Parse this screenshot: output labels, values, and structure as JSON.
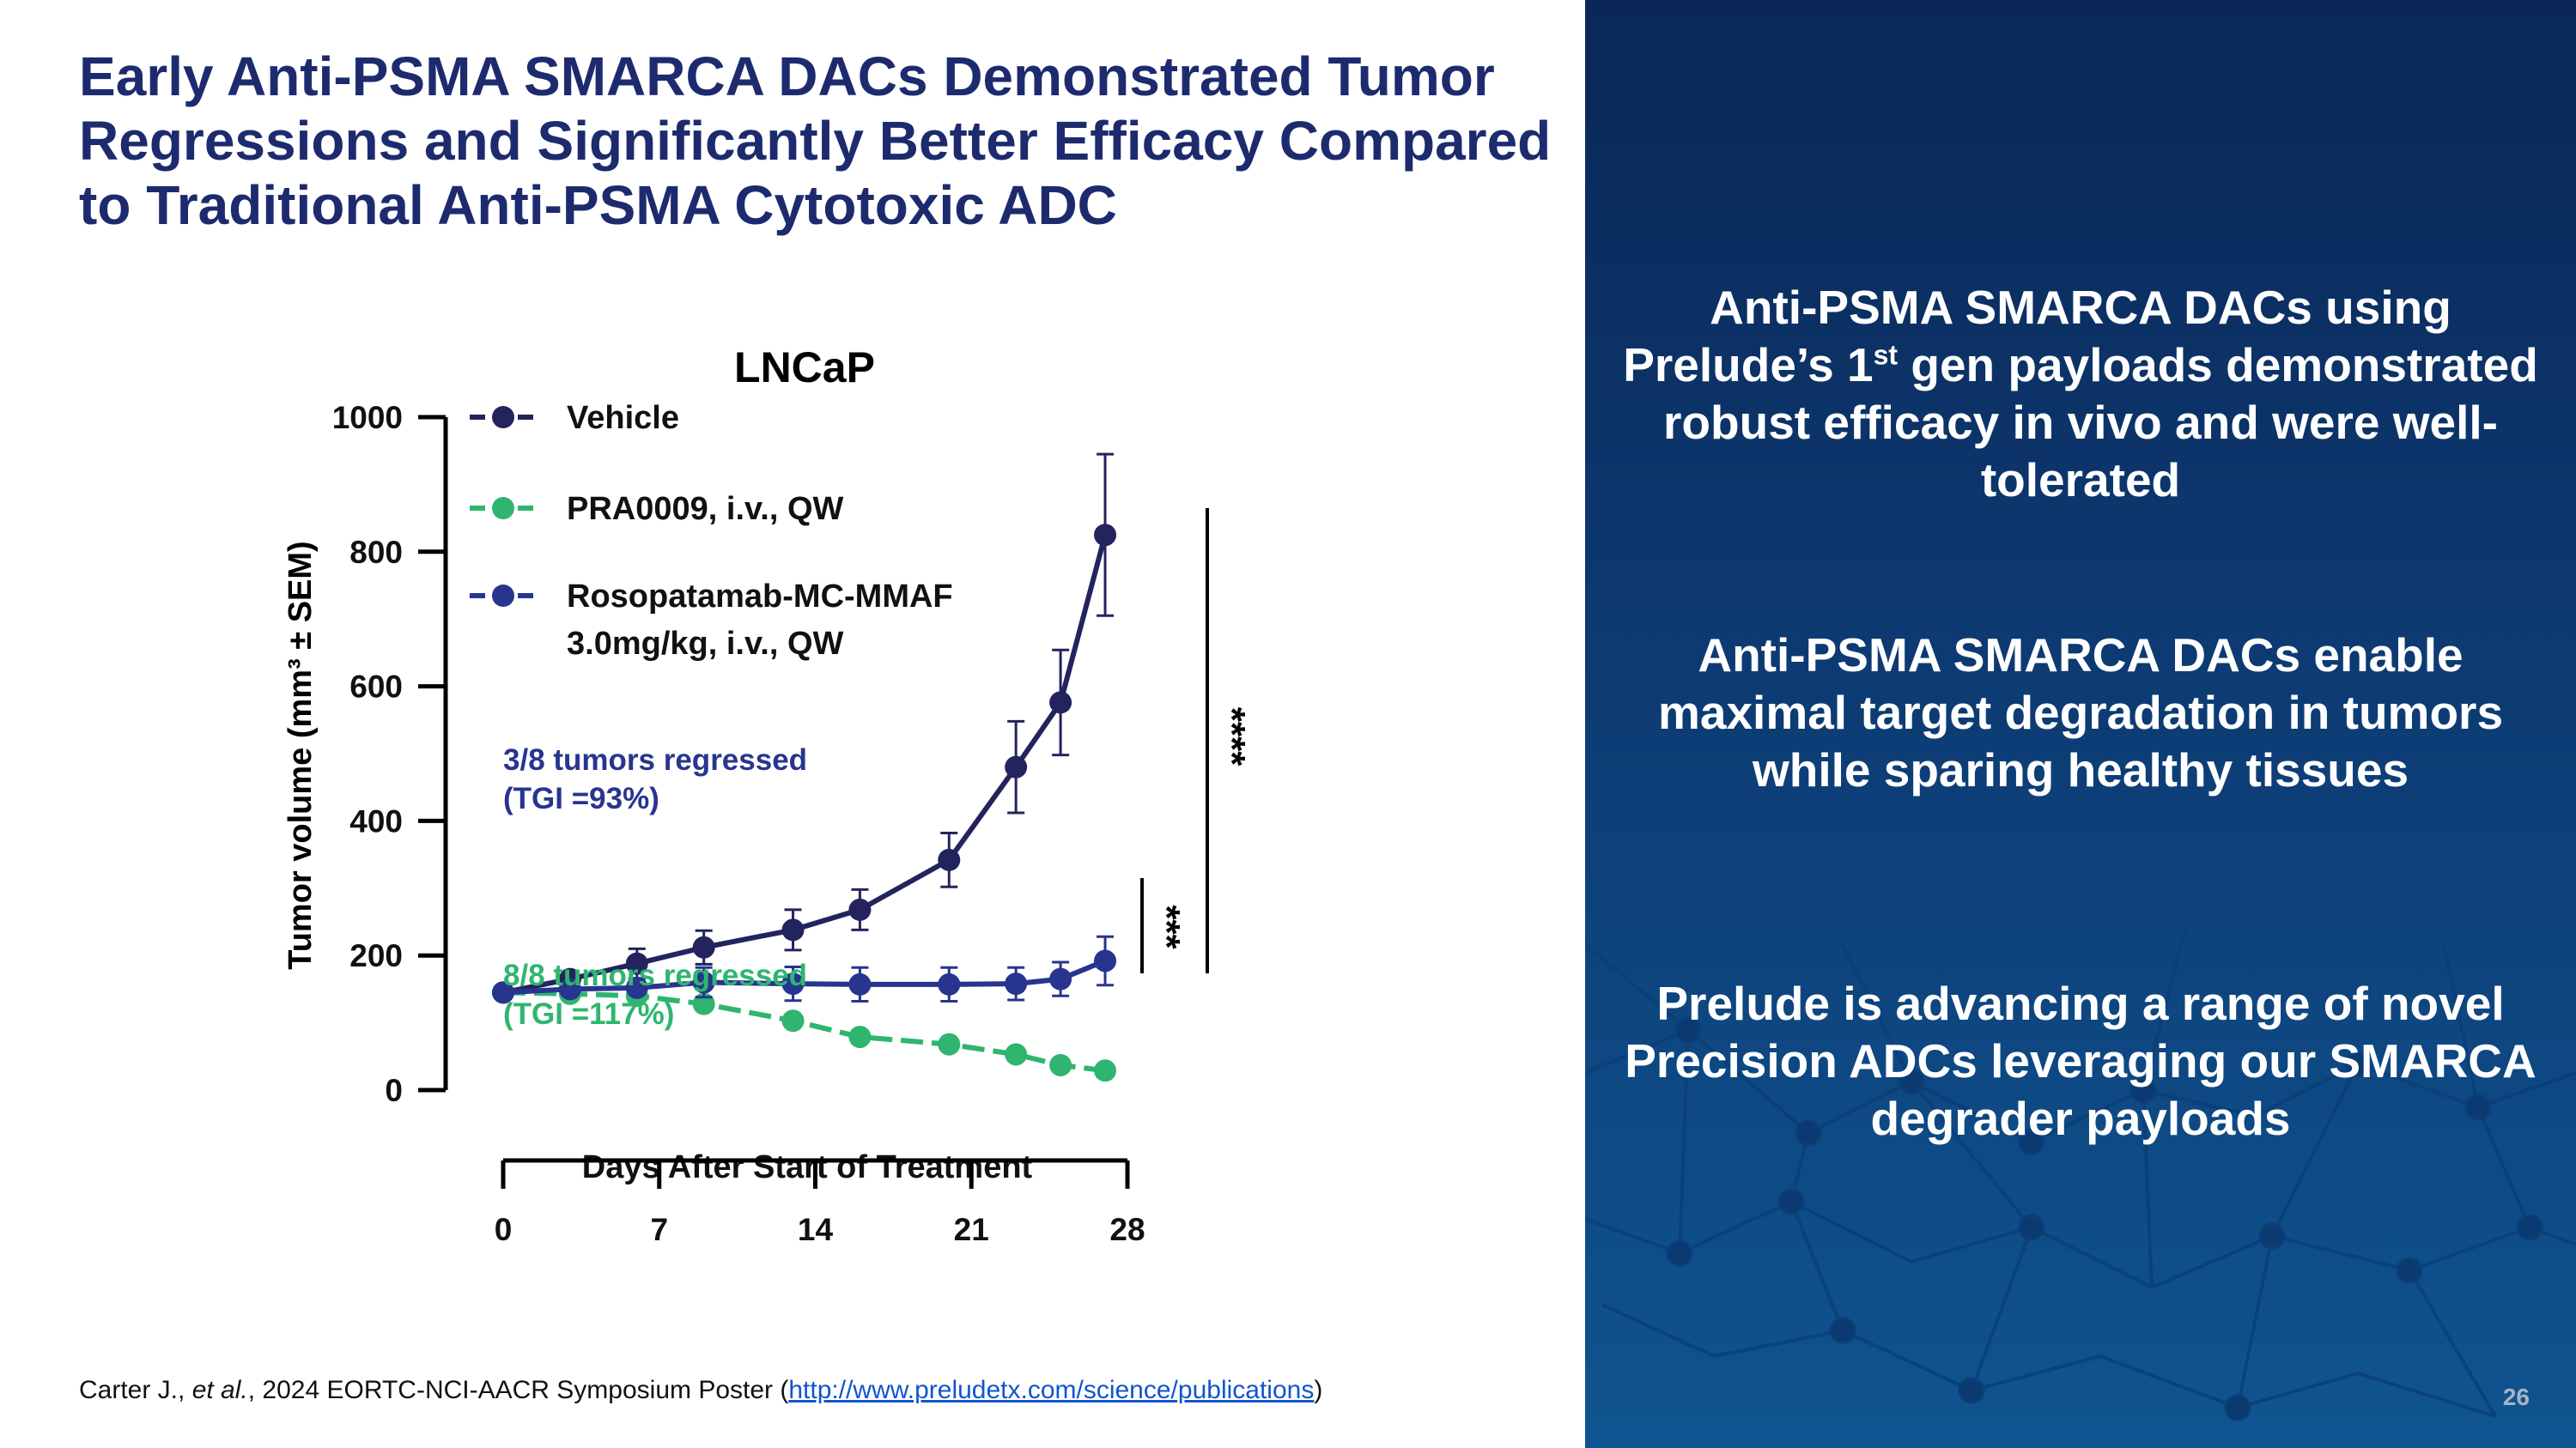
{
  "title": "Early Anti-PSMA SMARCA DACs Demonstrated Tumor Regressions and Significantly Better Efficacy Compared to Traditional Anti-PSMA Cytotoxic ADC",
  "right_panel": {
    "p1_before": "Anti-PSMA SMARCA DACs using Prelude’s 1",
    "p1_sup": "st",
    "p1_after": " gen payloads demonstrated robust efficacy in vivo and were well-tolerated",
    "p2": "Anti-PSMA SMARCA DACs enable maximal target degradation in tumors while sparing healthy tissues",
    "p3": "Prelude is advancing a range of novel Precision ADCs leveraging our SMARCA degrader payloads",
    "page_number": "26"
  },
  "footer": {
    "before": "Carter J., ",
    "italic": "et al.",
    "after": ", 2024 EORTC-NCI-AACR Symposium Poster (",
    "link": "http://www.preludetx.com/science/publications",
    "close": ")"
  },
  "colors": {
    "title": "#1d2b6e",
    "vehicle": "#23245e",
    "pra0009": "#2fb56f",
    "rosopatamab": "#27358f",
    "panel": "#0d3a72"
  },
  "chart_data": {
    "type": "line",
    "title": "LNCaP",
    "xlabel": "Days After Start of Treatment",
    "ylabel": "Tumor volume (mm³ ± SEM)",
    "xlim": [
      0,
      28
    ],
    "ylim": [
      0,
      1000
    ],
    "xticks": [
      0,
      7,
      14,
      21,
      28
    ],
    "yticks": [
      0,
      200,
      400,
      600,
      800,
      1000
    ],
    "legend_placement": "top-left",
    "x": [
      0,
      3,
      6,
      9,
      13,
      16,
      20,
      23,
      25,
      27
    ],
    "series": [
      {
        "name": "Vehicle",
        "color": "#23245e",
        "dashed": false,
        "values": [
          145,
          165,
          188,
          212,
          238,
          268,
          342,
          480,
          576,
          825
        ],
        "sem": [
          5,
          8,
          22,
          25,
          30,
          30,
          40,
          68,
          78,
          120
        ]
      },
      {
        "name": "PRA0009, i.v., QW",
        "color": "#2fb56f",
        "dashed": true,
        "values": [
          145,
          143,
          140,
          128,
          103,
          79,
          68,
          53,
          37,
          29
        ],
        "sem": [
          3,
          3,
          4,
          4,
          4,
          4,
          4,
          4,
          4,
          3
        ]
      },
      {
        "name": "Rosopatamab-MC-MMAF 3.0mg/kg, i.v., QW",
        "name_line1": "Rosopatamab-MC-MMAF",
        "name_line2": "3.0mg/kg, i.v., QW",
        "color": "#27358f",
        "dashed": false,
        "values": [
          145,
          150,
          152,
          160,
          158,
          157,
          157,
          158,
          165,
          192
        ],
        "sem": [
          3,
          8,
          10,
          22,
          25,
          25,
          25,
          24,
          25,
          36
        ]
      }
    ],
    "annotations": {
      "rosopatamab_l1": "3/8 tumors regressed",
      "rosopatamab_l2": "(TGI =93%)",
      "pra0009_l1": "8/8 tumors regressed",
      "pra0009_l2": "(TGI =117%)",
      "sig_vehicle": "****",
      "sig_rosopatamab": "***"
    }
  }
}
